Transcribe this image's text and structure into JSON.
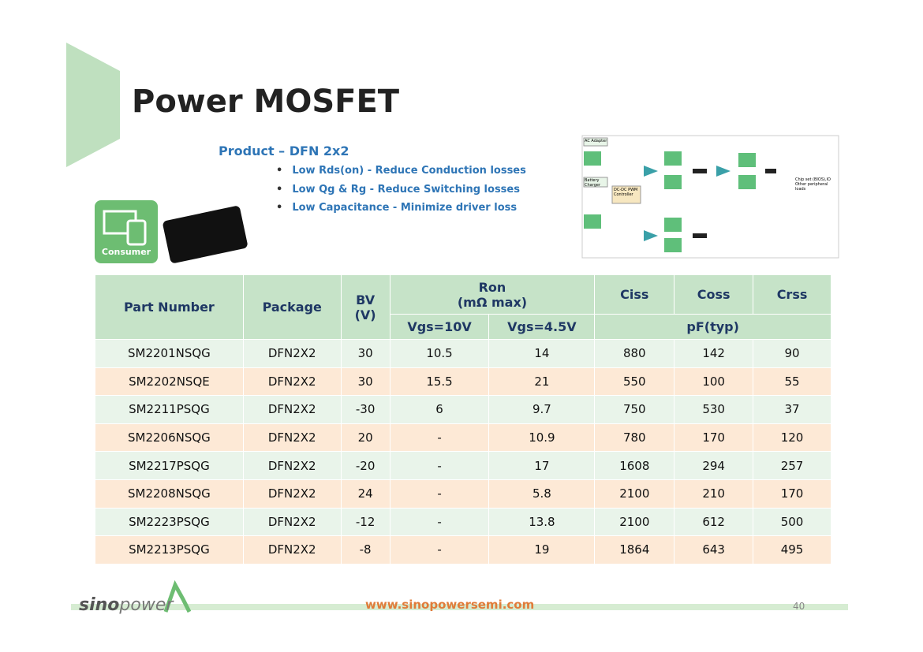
{
  "header": {
    "title": "Power MOSFET",
    "subtitle": "Product – DFN 2x2",
    "bullets": [
      "Low Rds(on) - Reduce Conduction losses",
      "Low Qg & Rg - Reduce Switching losses",
      "Low Capacitance - Minimize driver loss"
    ]
  },
  "badge": "Consumer",
  "diagram": {
    "labels": [
      "AC Adapter",
      "Battery Charger",
      "DC-DC PWM Controller",
      "Chip set (BIOS),IO Other peripheral loads"
    ]
  },
  "table": {
    "header": {
      "part": "Part Number",
      "package": "Package",
      "bv": "BV (V)",
      "ron": "Ron",
      "ron_unit": "(mΩ max)",
      "ciss": "Ciss",
      "coss": "Coss",
      "crss": "Crss",
      "vgs10": "Vgs=10V",
      "vgs45": "Vgs=4.5V",
      "pf": "pF(typ)"
    },
    "rows": [
      [
        "SM2201NSQG",
        "DFN2X2",
        "30",
        "10.5",
        "14",
        "880",
        "142",
        "90"
      ],
      [
        "SM2202NSQE",
        "DFN2X2",
        "30",
        "15.5",
        "21",
        "550",
        "100",
        "55"
      ],
      [
        "SM2211PSQG",
        "DFN2X2",
        "-30",
        "6",
        "9.7",
        "750",
        "530",
        "37"
      ],
      [
        "SM2206NSQG",
        "DFN2X2",
        "20",
        "-",
        "10.9",
        "780",
        "170",
        "120"
      ],
      [
        "SM2217PSQG",
        "DFN2X2",
        "-20",
        "-",
        "17",
        "1608",
        "294",
        "257"
      ],
      [
        "SM2208NSQG",
        "DFN2X2",
        "24",
        "-",
        "5.8",
        "2100",
        "210",
        "170"
      ],
      [
        "SM2223PSQG",
        "DFN2X2",
        "-12",
        "-",
        "13.8",
        "2100",
        "612",
        "500"
      ],
      [
        "SM2213PSQG",
        "DFN2X2",
        "-8",
        "-",
        "19",
        "1864",
        "643",
        "495"
      ]
    ]
  },
  "footer": {
    "url": "www.sinopowersemi.com",
    "page": "40",
    "logo_a": "sino",
    "logo_b": "power"
  }
}
